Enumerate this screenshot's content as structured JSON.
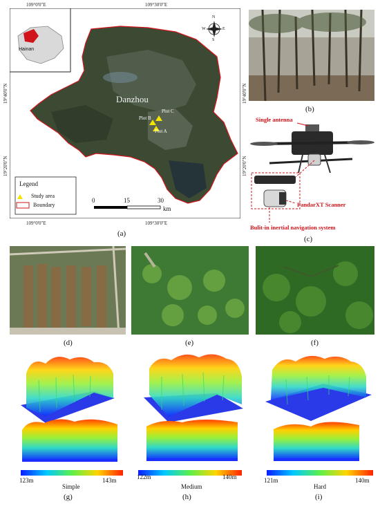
{
  "map": {
    "coord_top": [
      "109°0'0\"E",
      "109°30'0\"E"
    ],
    "coord_bottom": [
      "109°0'0\"E",
      "109°30'0\"E"
    ],
    "coord_left": [
      "19°40'0\"N",
      "19°20'0\"N"
    ],
    "coord_right": [
      "19°40'0\"N",
      "19°20'0\"N"
    ],
    "inset_label": "Hainan",
    "city_label": "Danzhou",
    "plots": [
      "Plot C",
      "Plot B",
      "Plot A"
    ],
    "compass": {
      "n": "N",
      "s": "S",
      "e": "E",
      "w": "W"
    },
    "legend": {
      "title": "Legend",
      "study_area": "Study area",
      "boundary": "Boundary"
    },
    "scale": {
      "ticks": [
        "0",
        "15",
        "30"
      ],
      "unit": "km"
    },
    "caption": "(a)"
  },
  "photo_b_caption": "(b)",
  "uav": {
    "single_antenna": "Single antenna",
    "scanner": "PandarXT Scanner",
    "ins": "Bulit-in inertial navigation system",
    "caption": "(c)"
  },
  "aerial_captions": [
    "(d)",
    "(e)",
    "(f)"
  ],
  "clouds": [
    {
      "min": "123m",
      "max": "143m",
      "difficulty": "Simple",
      "caption": "(g)"
    },
    {
      "min": "122m",
      "max": "140m",
      "difficulty": "Medium",
      "caption": "(h)"
    },
    {
      "min": "121m",
      "max": "140m",
      "difficulty": "Hard",
      "caption": "(i)"
    }
  ],
  "colors": {
    "boundary": "#d1141a",
    "annotation_red": "#d1141a",
    "plot_marker": "#f5e400"
  }
}
